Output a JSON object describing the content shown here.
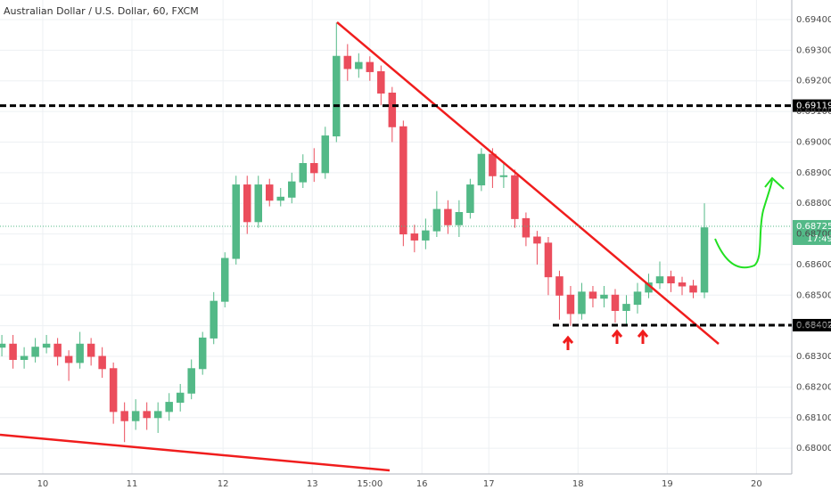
{
  "chart_data": {
    "type": "candlestick",
    "title": "Australian Dollar / U.S. Dollar, 60, FXCM",
    "up_color": "#53b987",
    "down_color": "#eb4d5c",
    "grid": true,
    "xlim": [
      -11.5,
      201.5
    ],
    "ylim": [
      0.67916,
      0.69464
    ],
    "xticks": [
      {
        "value": 0,
        "label": "10"
      },
      {
        "value": 24,
        "label": "11"
      },
      {
        "value": 48.5,
        "label": "12"
      },
      {
        "value": 72.5,
        "label": "13"
      },
      {
        "value": 88,
        "label": "15:00"
      },
      {
        "value": 102,
        "label": "16"
      },
      {
        "value": 120,
        "label": "17"
      },
      {
        "value": 144,
        "label": "18"
      },
      {
        "value": 168,
        "label": "19"
      },
      {
        "value": 192,
        "label": "20"
      }
    ],
    "yticks": [
      {
        "value": 0.68,
        "label": "0.68000"
      },
      {
        "value": 0.681,
        "label": "0.68100"
      },
      {
        "value": 0.682,
        "label": "0.68200"
      },
      {
        "value": 0.683,
        "label": "0.68300"
      },
      {
        "value": 0.684,
        "label": "0.68400"
      },
      {
        "value": 0.685,
        "label": "0.68500"
      },
      {
        "value": 0.686,
        "label": "0.68600"
      },
      {
        "value": 0.687,
        "label": "0.68700"
      },
      {
        "value": 0.688,
        "label": "0.68800"
      },
      {
        "value": 0.689,
        "label": "0.68900"
      },
      {
        "value": 0.69,
        "label": "0.69000"
      },
      {
        "value": 0.691,
        "label": "0.69100"
      },
      {
        "value": 0.692,
        "label": "0.69200"
      },
      {
        "value": 0.693,
        "label": "0.69300"
      },
      {
        "value": 0.694,
        "label": "0.69400"
      }
    ],
    "levels": [
      {
        "value": 0.69119,
        "label": "0.69119"
      },
      {
        "value": 0.68402,
        "label": "0.68402"
      }
    ],
    "last_price": {
      "value": 0.68725,
      "label": "0.68725"
    },
    "countdown": "17:49",
    "x": [
      -11,
      -8,
      -5,
      -2,
      1,
      4,
      7,
      10,
      13,
      16,
      19,
      22,
      25,
      28,
      31,
      34,
      37,
      40,
      43,
      46,
      49,
      52,
      55,
      58,
      61,
      64,
      67,
      70,
      73,
      76,
      79,
      82,
      85,
      88,
      91,
      94,
      97,
      100,
      103,
      106,
      109,
      112,
      115,
      118,
      121,
      124,
      127,
      130,
      133,
      136,
      139,
      142,
      145,
      148,
      151,
      154,
      157,
      160,
      163,
      166,
      169,
      172,
      175,
      178
    ],
    "open": [
      0.6833,
      0.6834,
      0.6829,
      0.683,
      0.6833,
      0.6834,
      0.683,
      0.6828,
      0.6834,
      0.683,
      0.6826,
      0.6812,
      0.6809,
      0.6812,
      0.681,
      0.6812,
      0.6815,
      0.6818,
      0.6826,
      0.6836,
      0.6848,
      0.6862,
      0.6886,
      0.6874,
      0.6886,
      0.6881,
      0.6882,
      0.6887,
      0.6893,
      0.689,
      0.6902,
      0.6928,
      0.6924,
      0.6926,
      0.6923,
      0.6916,
      0.6905,
      0.687,
      0.6868,
      0.6871,
      0.6878,
      0.6873,
      0.6877,
      0.6886,
      0.6896,
      0.6889,
      0.6889,
      0.6875,
      0.6869,
      0.6867,
      0.6856,
      0.685,
      0.6844,
      0.6851,
      0.6849,
      0.685,
      0.6845,
      0.6847,
      0.6851,
      0.6854,
      0.6856,
      0.6854,
      0.6853,
      0.6851
    ],
    "high": [
      0.6837,
      0.6837,
      0.6833,
      0.6836,
      0.6837,
      0.6836,
      0.6832,
      0.6838,
      0.6836,
      0.6833,
      0.6828,
      0.6815,
      0.6816,
      0.6815,
      0.6815,
      0.6818,
      0.6821,
      0.6829,
      0.6838,
      0.6851,
      0.6864,
      0.6889,
      0.6889,
      0.6889,
      0.6888,
      0.6885,
      0.689,
      0.6896,
      0.6898,
      0.6905,
      0.6939,
      0.6932,
      0.6929,
      0.6928,
      0.6925,
      0.6918,
      0.6907,
      0.6873,
      0.6875,
      0.6884,
      0.6881,
      0.6881,
      0.6888,
      0.6898,
      0.6898,
      0.6893,
      0.6891,
      0.6877,
      0.6871,
      0.6869,
      0.6858,
      0.6853,
      0.6854,
      0.6853,
      0.6853,
      0.6852,
      0.685,
      0.6854,
      0.6857,
      0.6861,
      0.6858,
      0.6856,
      0.6855,
      0.688
    ],
    "low": [
      0.683,
      0.6826,
      0.6826,
      0.6828,
      0.6831,
      0.6827,
      0.6822,
      0.6826,
      0.6827,
      0.6823,
      0.6808,
      0.6802,
      0.6806,
      0.6806,
      0.6805,
      0.6809,
      0.6812,
      0.6816,
      0.6824,
      0.6834,
      0.6846,
      0.686,
      0.687,
      0.6872,
      0.6879,
      0.6879,
      0.688,
      0.6885,
      0.6887,
      0.6888,
      0.69,
      0.692,
      0.6921,
      0.692,
      0.6912,
      0.69,
      0.6866,
      0.6864,
      0.6865,
      0.6869,
      0.687,
      0.6869,
      0.6875,
      0.6884,
      0.6885,
      0.6885,
      0.6872,
      0.6866,
      0.686,
      0.685,
      0.6842,
      0.684,
      0.6842,
      0.6846,
      0.6846,
      0.6841,
      0.684,
      0.6844,
      0.6849,
      0.6852,
      0.6851,
      0.685,
      0.6849,
      0.6849
    ],
    "close": [
      0.6834,
      0.6829,
      0.683,
      0.6833,
      0.6834,
      0.683,
      0.6828,
      0.6834,
      0.683,
      0.6826,
      0.6812,
      0.6809,
      0.6812,
      0.681,
      0.6812,
      0.6815,
      0.6818,
      0.6826,
      0.6836,
      0.6848,
      0.6862,
      0.6886,
      0.6874,
      0.6886,
      0.6881,
      0.6882,
      0.6887,
      0.6893,
      0.689,
      0.6902,
      0.6928,
      0.6924,
      0.6926,
      0.6923,
      0.6916,
      0.6905,
      0.687,
      0.6868,
      0.6871,
      0.6878,
      0.6873,
      0.6877,
      0.6886,
      0.6896,
      0.6889,
      0.6889,
      0.6875,
      0.6869,
      0.6867,
      0.6856,
      0.685,
      0.6844,
      0.6851,
      0.6849,
      0.685,
      0.6845,
      0.6847,
      0.6851,
      0.6854,
      0.6856,
      0.6854,
      0.6853,
      0.6851,
      0.6872
    ]
  }
}
